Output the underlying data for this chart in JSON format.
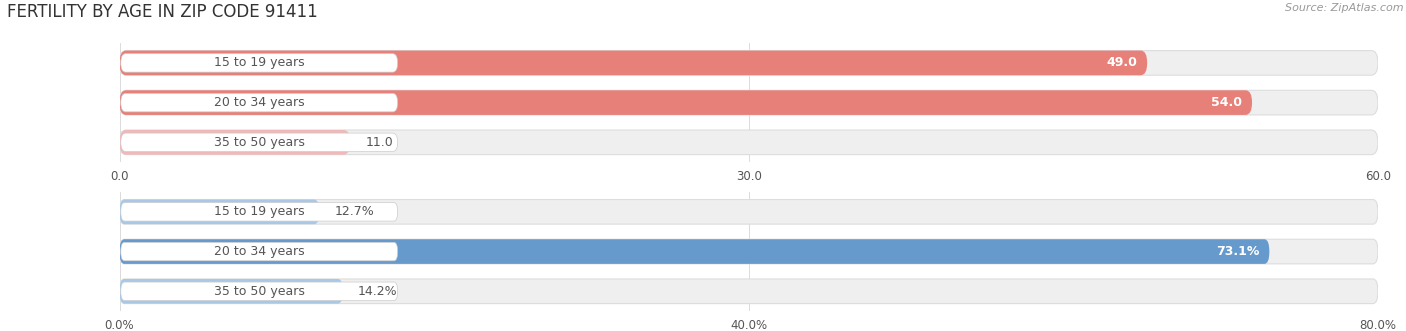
{
  "title": "FERTILITY BY AGE IN ZIP CODE 91411",
  "source": "Source: ZipAtlas.com",
  "top_chart": {
    "categories": [
      "15 to 19 years",
      "20 to 34 years",
      "35 to 50 years"
    ],
    "values": [
      49.0,
      54.0,
      11.0
    ],
    "bar_colors": [
      "#e8807a",
      "#e8807a",
      "#f0b8b8"
    ],
    "xlim": [
      0,
      60.0
    ],
    "xticks": [
      0.0,
      30.0,
      60.0
    ],
    "xtick_labels": [
      "0.0",
      "30.0",
      "60.0"
    ],
    "value_labels": [
      "49.0",
      "54.0",
      "11.0"
    ]
  },
  "bottom_chart": {
    "categories": [
      "15 to 19 years",
      "20 to 34 years",
      "35 to 50 years"
    ],
    "values": [
      12.7,
      73.1,
      14.2
    ],
    "bar_colors": [
      "#a8c8e8",
      "#6699cc",
      "#a8c8e8"
    ],
    "xlim": [
      0,
      80.0
    ],
    "xticks": [
      0.0,
      40.0,
      80.0
    ],
    "xtick_labels": [
      "0.0%",
      "40.0%",
      "80.0%"
    ],
    "value_labels": [
      "12.7%",
      "73.1%",
      "14.2%"
    ]
  },
  "label_color": "#555555",
  "bg_color": "#ffffff",
  "row_bg_color": "#efefef",
  "label_pill_color": "#ffffff",
  "bar_height": 0.62,
  "title_fontsize": 12,
  "label_fontsize": 9,
  "tick_fontsize": 8.5
}
